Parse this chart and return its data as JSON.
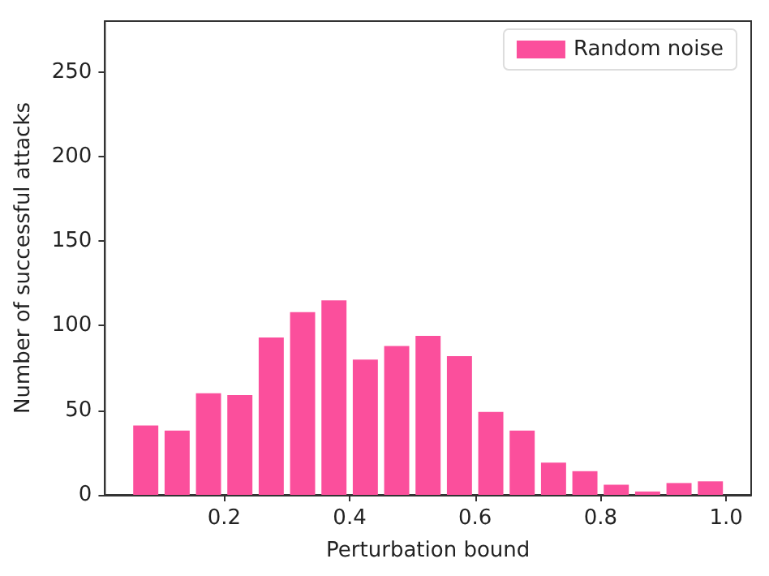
{
  "chart_data": {
    "type": "histogram",
    "xlabel": "Perturbation bound",
    "ylabel": "Number of successful attacks",
    "bins": [
      0.05,
      0.1,
      0.15,
      0.2,
      0.25,
      0.3,
      0.35,
      0.4,
      0.45,
      0.5,
      0.55,
      0.6,
      0.65,
      0.7,
      0.75,
      0.8,
      0.85,
      0.9,
      0.95,
      1.0
    ],
    "series": [
      {
        "name": "Random noise",
        "color": "#fb4f9c",
        "values": [
          41,
          38,
          60,
          59,
          93,
          108,
          115,
          80,
          88,
          94,
          82,
          49,
          38,
          19,
          14,
          6,
          2,
          7,
          8
        ]
      }
    ],
    "xlim": [
      0.01,
      1.04
    ],
    "xticks": [
      0.2,
      0.4,
      0.6,
      0.8,
      {
        "value": 1,
        "label": "1.0"
      }
    ],
    "ylim": [
      0,
      280
    ],
    "yticks": [
      0,
      50,
      100,
      150,
      200,
      250
    ],
    "grid": false,
    "legend": "top right"
  }
}
